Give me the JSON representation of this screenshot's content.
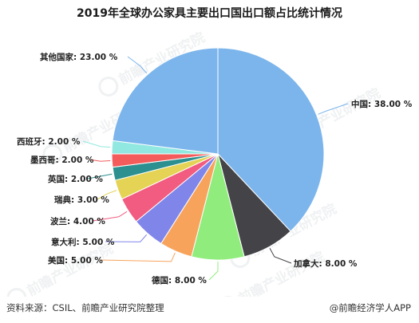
{
  "chart_data": {
    "type": "pie",
    "title": "2019年全球办公家具主要出口国出口额占比统计情况",
    "unit": "%",
    "slices": [
      {
        "label": "中国",
        "value": 38.0,
        "display": "中国: 38.00 %",
        "color": "#7cb5ec"
      },
      {
        "label": "加拿大",
        "value": 8.0,
        "display": "加拿大: 8.00 %",
        "color": "#434348"
      },
      {
        "label": "德国",
        "value": 8.0,
        "display": "德国: 8.00 %",
        "color": "#90ed7d"
      },
      {
        "label": "美国",
        "value": 5.0,
        "display": "美国: 5.00 %",
        "color": "#f7a35c"
      },
      {
        "label": "意大利",
        "value": 5.0,
        "display": "意大利: 5.00 %",
        "color": "#8085e9"
      },
      {
        "label": "波兰",
        "value": 4.0,
        "display": "波兰: 4.00 %",
        "color": "#f15c80"
      },
      {
        "label": "瑞典",
        "value": 3.0,
        "display": "瑞典: 3.00 %",
        "color": "#e4d354"
      },
      {
        "label": "英国",
        "value": 2.0,
        "display": "英国: 2.00 %",
        "color": "#2b908f"
      },
      {
        "label": "墨西哥",
        "value": 2.0,
        "display": "墨西哥: 2.00 %",
        "color": "#f45b5b"
      },
      {
        "label": "西班牙",
        "value": 2.0,
        "display": "西班牙: 2.00 %",
        "color": "#91e8e1"
      },
      {
        "label": "其他国家",
        "value": 23.0,
        "display": "其他国家: 23.00 %",
        "color": "#7cb5ec"
      }
    ]
  },
  "footer": {
    "source": "资料来源：CSIL、前瞻产业研究院整理",
    "brand": "@前瞻经济学人APP"
  },
  "watermark": {
    "text": "前瞻产业研究院",
    "icon": "qianzhan-logo-icon"
  }
}
